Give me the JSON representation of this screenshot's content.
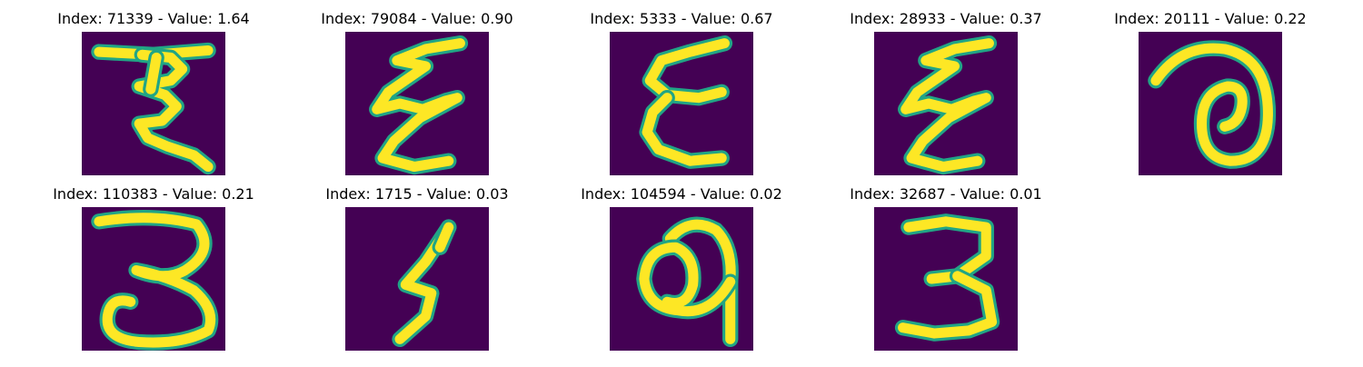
{
  "chart_data": {
    "type": "image-grid",
    "rows": 2,
    "columns": 5,
    "colormap": "viridis",
    "background_color": "#440154",
    "stroke_color": "#fde725",
    "edge_color": "#21a585",
    "panels": [
      {
        "index": 71339,
        "value": 1.64,
        "title": "Index: 71339 - Value: 1.64",
        "glyph": "zigzag-z"
      },
      {
        "index": 79084,
        "value": 0.9,
        "title": "Index: 79084 - Value: 0.90",
        "glyph": "zigzag-e"
      },
      {
        "index": 5333,
        "value": 0.67,
        "title": "Index: 5333 - Value: 0.67",
        "glyph": "epsilon"
      },
      {
        "index": 28933,
        "value": 0.37,
        "title": "Index: 28933 - Value: 0.37",
        "glyph": "zigzag-e"
      },
      {
        "index": 20111,
        "value": 0.22,
        "title": "Index: 20111 - Value: 0.22",
        "glyph": "spiral"
      },
      {
        "index": 110383,
        "value": 0.21,
        "title": "Index: 110383 - Value: 0.21",
        "glyph": "three-loop"
      },
      {
        "index": 1715,
        "value": 0.03,
        "title": "Index: 1715 - Value: 0.03",
        "glyph": "five"
      },
      {
        "index": 104594,
        "value": 0.02,
        "title": "Index: 104594 - Value: 0.02",
        "glyph": "loop-a"
      },
      {
        "index": 32687,
        "value": 0.01,
        "title": "Index: 32687 - Value: 0.01",
        "glyph": "three"
      }
    ]
  }
}
